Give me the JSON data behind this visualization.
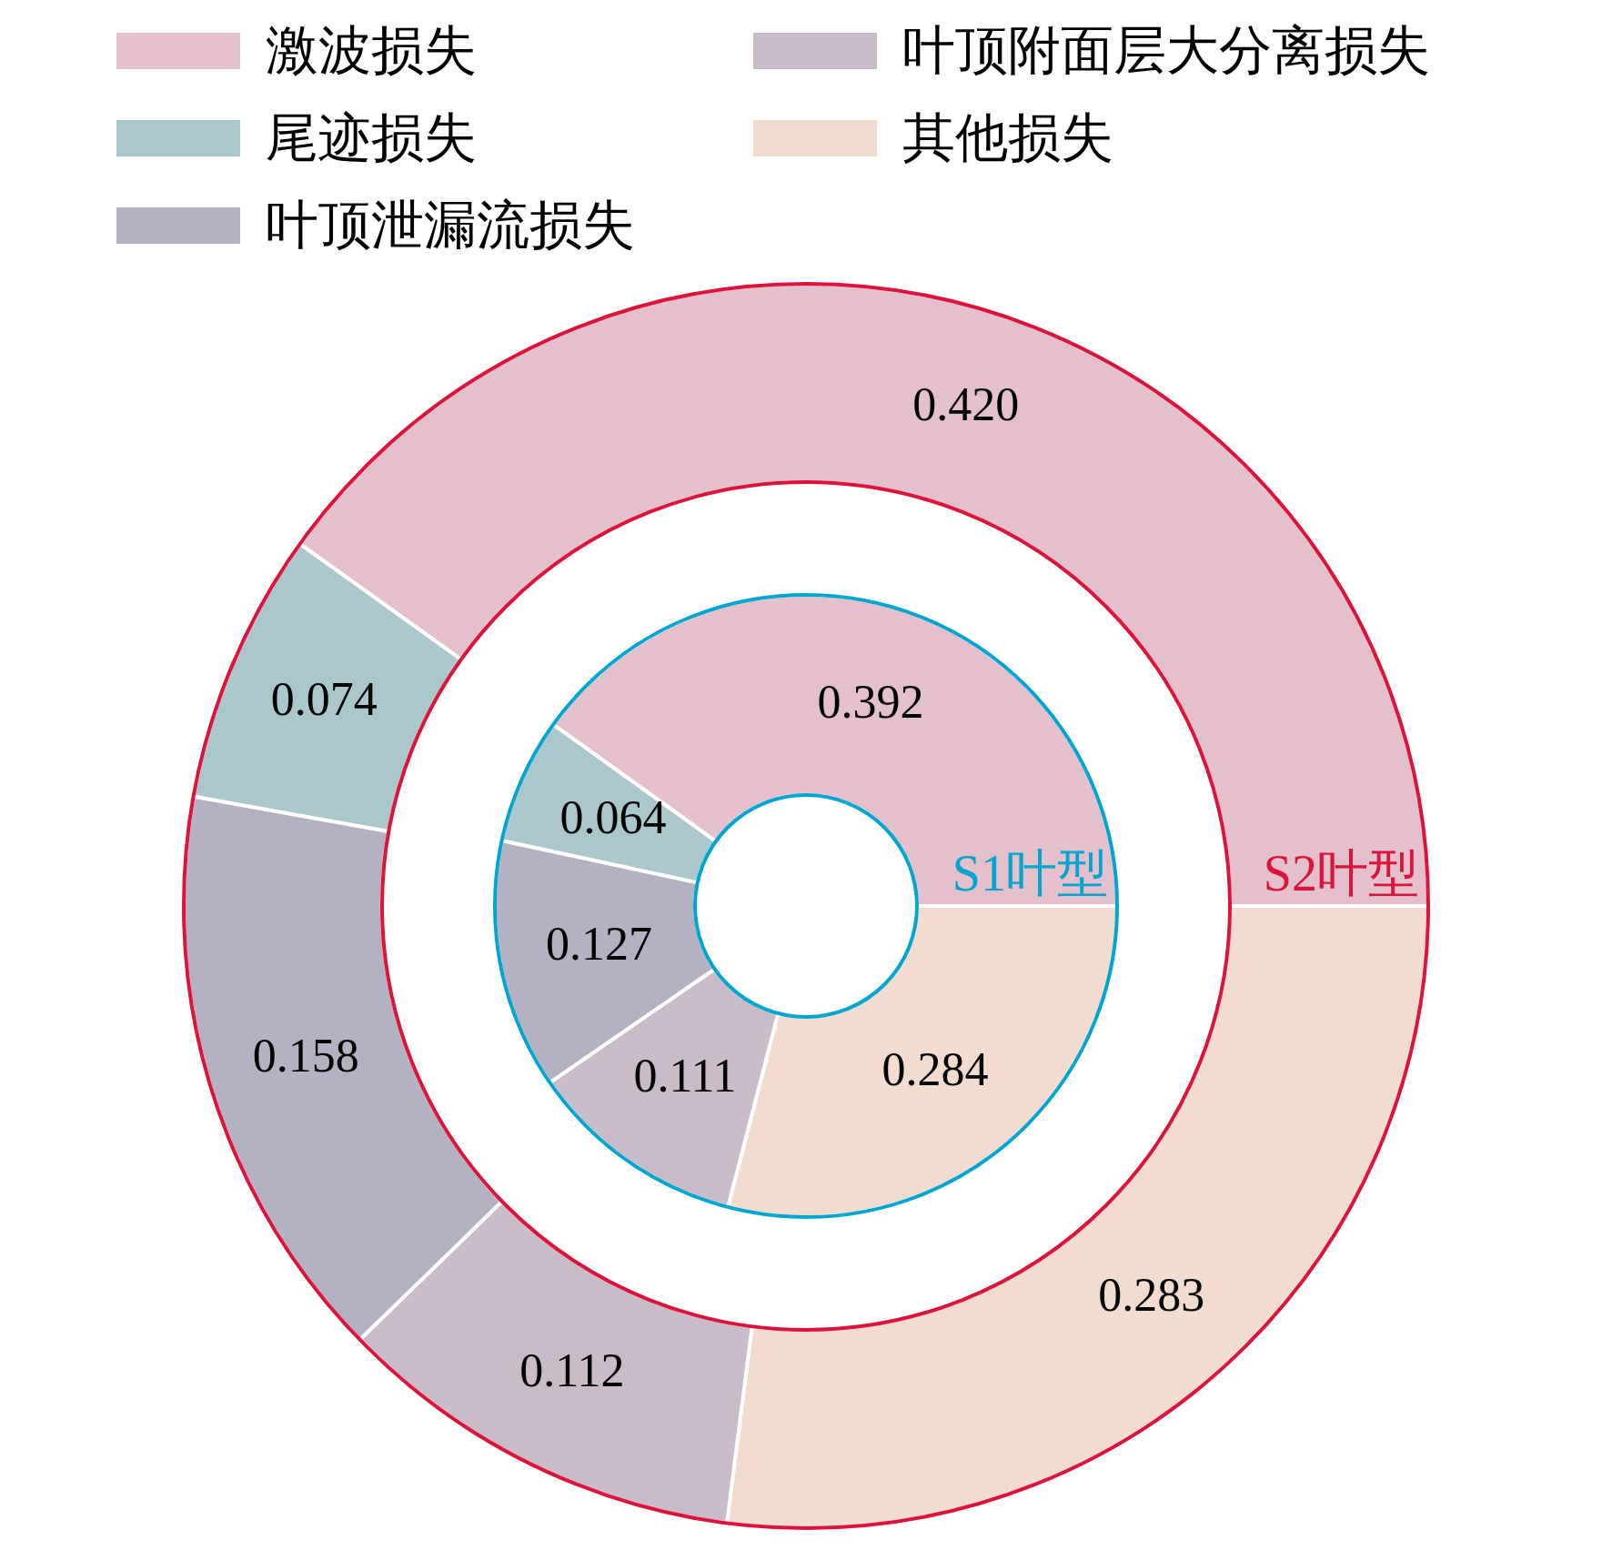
{
  "chart_data": {
    "type": "donut",
    "categories": [
      "激波损失",
      "尾迹损失",
      "叶顶泄漏流损失",
      "叶顶附面层大分离损失",
      "其他损失"
    ],
    "colors": [
      "#e3c0cb",
      "#aac8cc",
      "#b4b2c2",
      "#c9bbc8",
      "#f2dbcf"
    ],
    "legend": "top",
    "series": [
      {
        "name": "S1叶型",
        "color": "#00a6cf",
        "values": [
          0.392,
          0.064,
          0.127,
          0.111,
          0.284
        ],
        "value_labels": [
          "0.392",
          "0.064",
          "0.127",
          "0.111",
          "0.284"
        ]
      },
      {
        "name": "S2叶型",
        "color": "#dc143c",
        "values": [
          0.42,
          0.074,
          0.158,
          0.112,
          0.283
        ],
        "value_labels": [
          "0.420",
          "0.074",
          "0.158",
          "0.112",
          "0.283"
        ]
      }
    ]
  }
}
